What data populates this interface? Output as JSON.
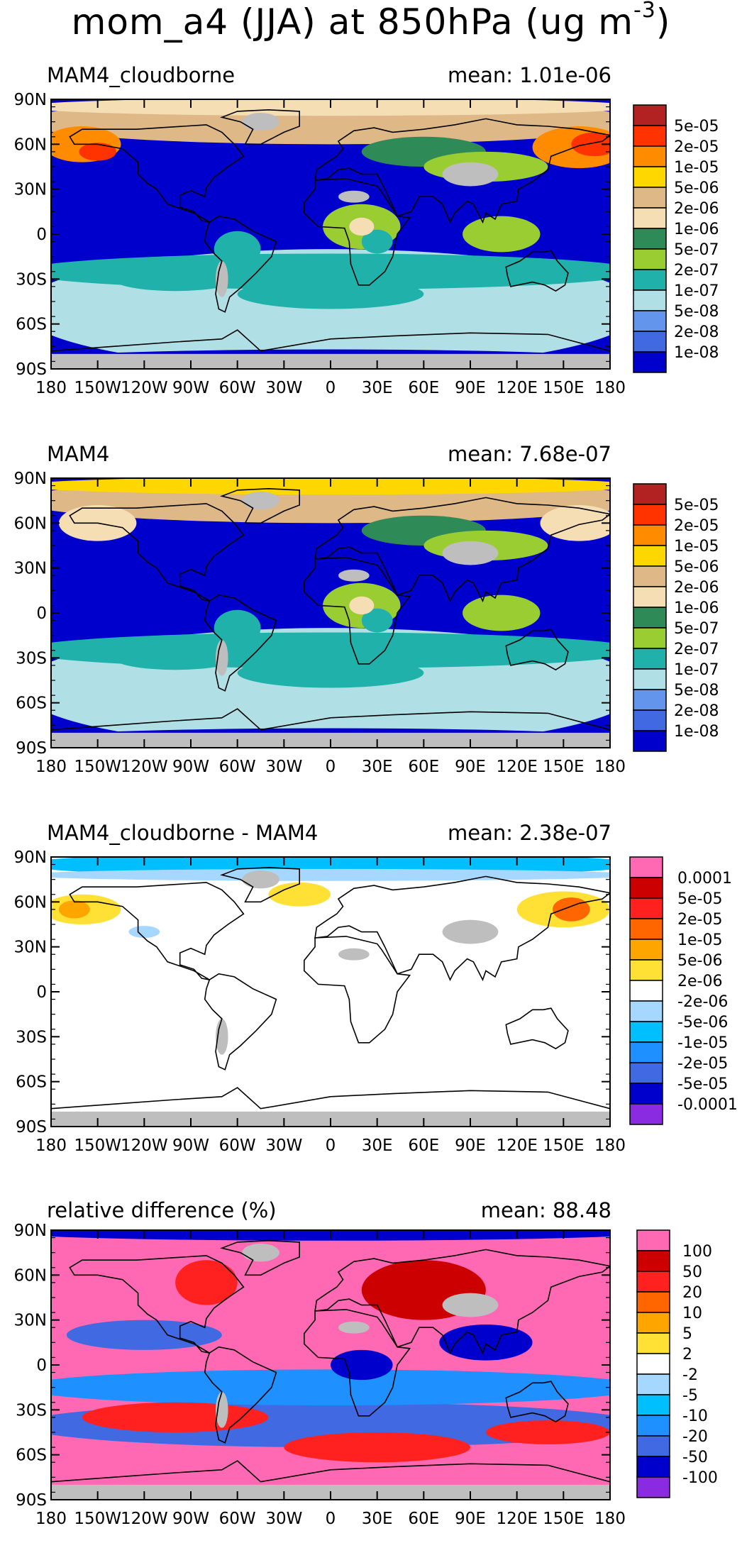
{
  "title": {
    "prefix": "mom_a4 (JJA) at 850hPa (ug m",
    "exp": "-3",
    "suffix": ")"
  },
  "axes": {
    "lat_ticks": [
      "90N",
      "60N",
      "30N",
      "0",
      "30S",
      "60S",
      "90S"
    ],
    "lon_ticks": [
      "180",
      "150W",
      "120W",
      "90W",
      "60W",
      "30W",
      "0",
      "30E",
      "60E",
      "90E",
      "120E",
      "150E",
      "180"
    ]
  },
  "panels": [
    {
      "title": "MAM4_cloudborne",
      "mean_label": "mean: 1.01e-06",
      "colorbar": {
        "labels": [
          "5e-05",
          "2e-05",
          "1e-05",
          "5e-06",
          "2e-06",
          "1e-06",
          "5e-07",
          "2e-07",
          "1e-07",
          "5e-08",
          "2e-08",
          "1e-08"
        ],
        "colors": [
          "#b22222",
          "#ff3300",
          "#ff8c00",
          "#ffd700",
          "#deb887",
          "#f5deb3",
          "#2e8b57",
          "#9acd32",
          "#20b2aa",
          "#b0e0e6",
          "#6495ed",
          "#4169e1",
          "#0000cd"
        ]
      }
    },
    {
      "title": "MAM4",
      "mean_label": "mean: 7.68e-07",
      "colorbar": {
        "labels": [
          "5e-05",
          "2e-05",
          "1e-05",
          "5e-06",
          "2e-06",
          "1e-06",
          "5e-07",
          "2e-07",
          "1e-07",
          "5e-08",
          "2e-08",
          "1e-08"
        ],
        "colors": [
          "#b22222",
          "#ff3300",
          "#ff8c00",
          "#ffd700",
          "#deb887",
          "#f5deb3",
          "#2e8b57",
          "#9acd32",
          "#20b2aa",
          "#b0e0e6",
          "#6495ed",
          "#4169e1",
          "#0000cd"
        ]
      }
    },
    {
      "title": "MAM4_cloudborne - MAM4",
      "mean_label": "mean: 2.38e-07",
      "colorbar": {
        "labels": [
          "0.0001",
          "5e-05",
          "2e-05",
          "1e-05",
          "5e-06",
          "2e-06",
          "-2e-06",
          "-5e-06",
          "-1e-05",
          "-2e-05",
          "-5e-05",
          "-0.0001"
        ],
        "colors": [
          "#ff69b4",
          "#cd0000",
          "#ff2020",
          "#ff6600",
          "#ffa500",
          "#ffe135",
          "#ffffff",
          "#a6d8ff",
          "#00bfff",
          "#1e90ff",
          "#4169e1",
          "#0000cd",
          "#8a2be2"
        ]
      }
    },
    {
      "title": "relative difference (%)",
      "mean_label": "mean: 88.48",
      "colorbar": {
        "labels": [
          "100",
          "50",
          "20",
          "10",
          "5",
          "2",
          "-2",
          "-5",
          "-10",
          "-20",
          "-50",
          "-100"
        ],
        "colors": [
          "#ff69b4",
          "#cd0000",
          "#ff2020",
          "#ff6600",
          "#ffa500",
          "#ffe135",
          "#ffffff",
          "#a6d8ff",
          "#00bfff",
          "#1e90ff",
          "#4169e1",
          "#0000cd",
          "#8a2be2"
        ]
      }
    }
  ]
}
